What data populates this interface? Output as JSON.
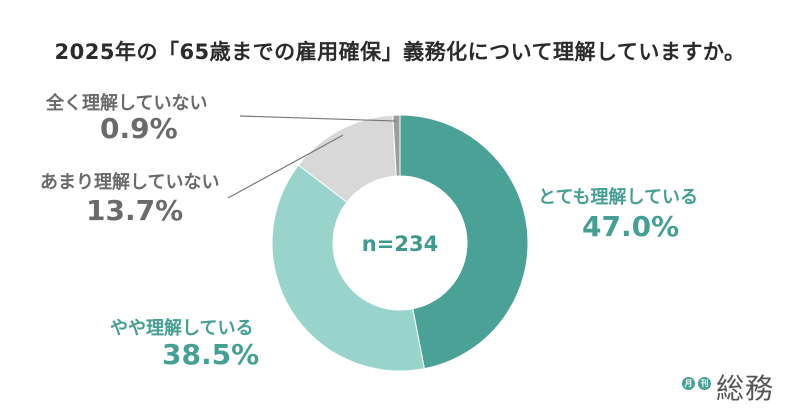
{
  "chart_data": {
    "type": "pie",
    "title": "2025年の「65歳までの雇用確保」義務化について理解していますか。",
    "center_label": "n=234",
    "slices": [
      {
        "name": "とても理解している",
        "value": 47.0,
        "label": "47.0%",
        "color": "#4aa195"
      },
      {
        "name": "やや理解している",
        "value": 38.5,
        "label": "38.5%",
        "color": "#98d4cb"
      },
      {
        "name": "あまり理解していない",
        "value": 13.7,
        "label": "13.7%",
        "color": "#d8d8d8"
      },
      {
        "name": "全く理解していない",
        "value": 0.9,
        "label": "0.9%",
        "color": "#9e9e9e"
      }
    ]
  },
  "logo": {
    "badge_1": "月",
    "badge_2": "刊",
    "text": "総務",
    "color": "#45a093"
  }
}
